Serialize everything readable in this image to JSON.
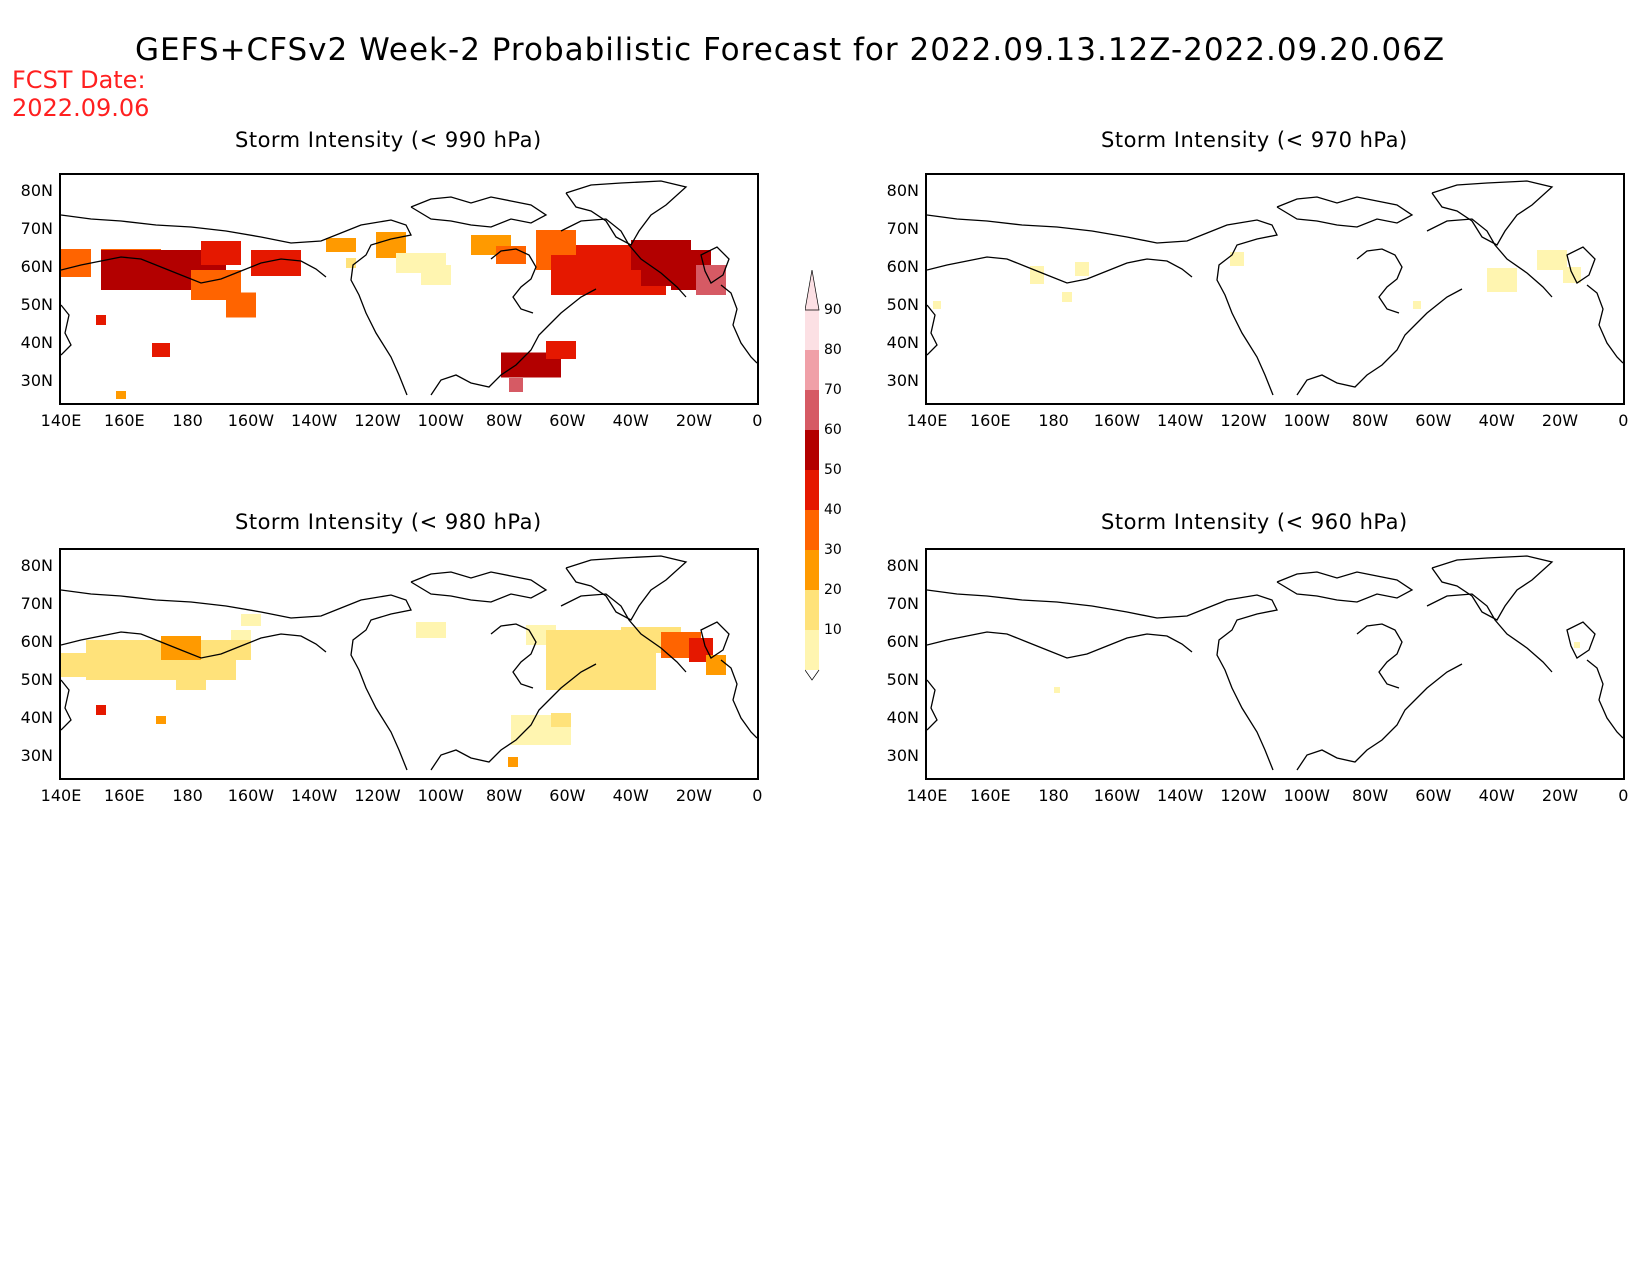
{
  "title": "GEFS+CFSv2 Week-2 Probabilistic Forecast for 2022.09.13.12Z-2022.09.20.06Z",
  "fcst_date_label": "FCST Date:",
  "fcst_date": "2022.09.06",
  "panels": [
    {
      "title": "Storm Intensity (< 990 hPa)"
    },
    {
      "title": "Storm Intensity (< 970 hPa)"
    },
    {
      "title": "Storm Intensity (< 980 hPa)"
    },
    {
      "title": "Storm Intensity (< 960 hPa)"
    }
  ],
  "lat_labels": [
    "80N",
    "70N",
    "60N",
    "50N",
    "40N",
    "30N"
  ],
  "lon_labels": [
    "140E",
    "160E",
    "180",
    "160W",
    "140W",
    "120W",
    "100W",
    "80W",
    "60W",
    "40W",
    "20W",
    "0"
  ],
  "colorbar": {
    "levels": [
      "10",
      "20",
      "30",
      "40",
      "50",
      "60",
      "70",
      "80",
      "90"
    ],
    "colors": [
      "#fff5b0",
      "#ffe27a",
      "#ff9a00",
      "#ff6400",
      "#e51800",
      "#b30000",
      "#d65a64",
      "#f0a0a8",
      "#fce0e4"
    ]
  }
}
